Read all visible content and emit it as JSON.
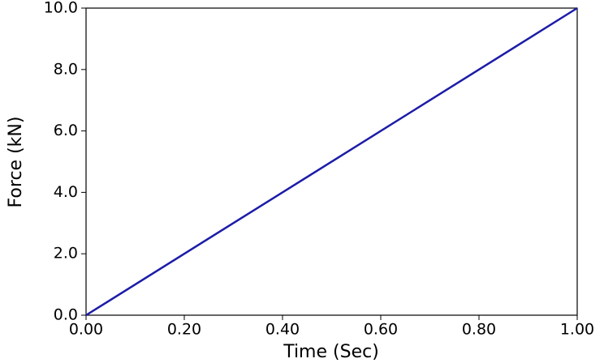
{
  "chart_data": {
    "type": "line",
    "x_label": "Time (Sec)",
    "y_label": "Force (kN)",
    "x": [
      0,
      1
    ],
    "series": [
      {
        "name": "Force",
        "color": "#1c1ca8",
        "values": [
          0,
          10
        ]
      }
    ],
    "xlim": [
      0,
      1
    ],
    "xticks": [
      {
        "value": 0,
        "label": "0.00"
      },
      {
        "value": 0.2,
        "label": "0.20"
      },
      {
        "value": 0.4,
        "label": "0.40"
      },
      {
        "value": 0.6,
        "label": "0.60"
      },
      {
        "value": 0.8,
        "label": "0.80"
      },
      {
        "value": 1,
        "label": "1.00"
      }
    ],
    "ylim": [
      0,
      10
    ],
    "yticks": [
      {
        "value": 0,
        "label": "0.0"
      },
      {
        "value": 2,
        "label": "2.0"
      },
      {
        "value": 4,
        "label": "4.0"
      },
      {
        "value": 6,
        "label": "6.0"
      },
      {
        "value": 8,
        "label": "8.0"
      },
      {
        "value": 10,
        "label": "10.0"
      }
    ],
    "grid": false
  }
}
